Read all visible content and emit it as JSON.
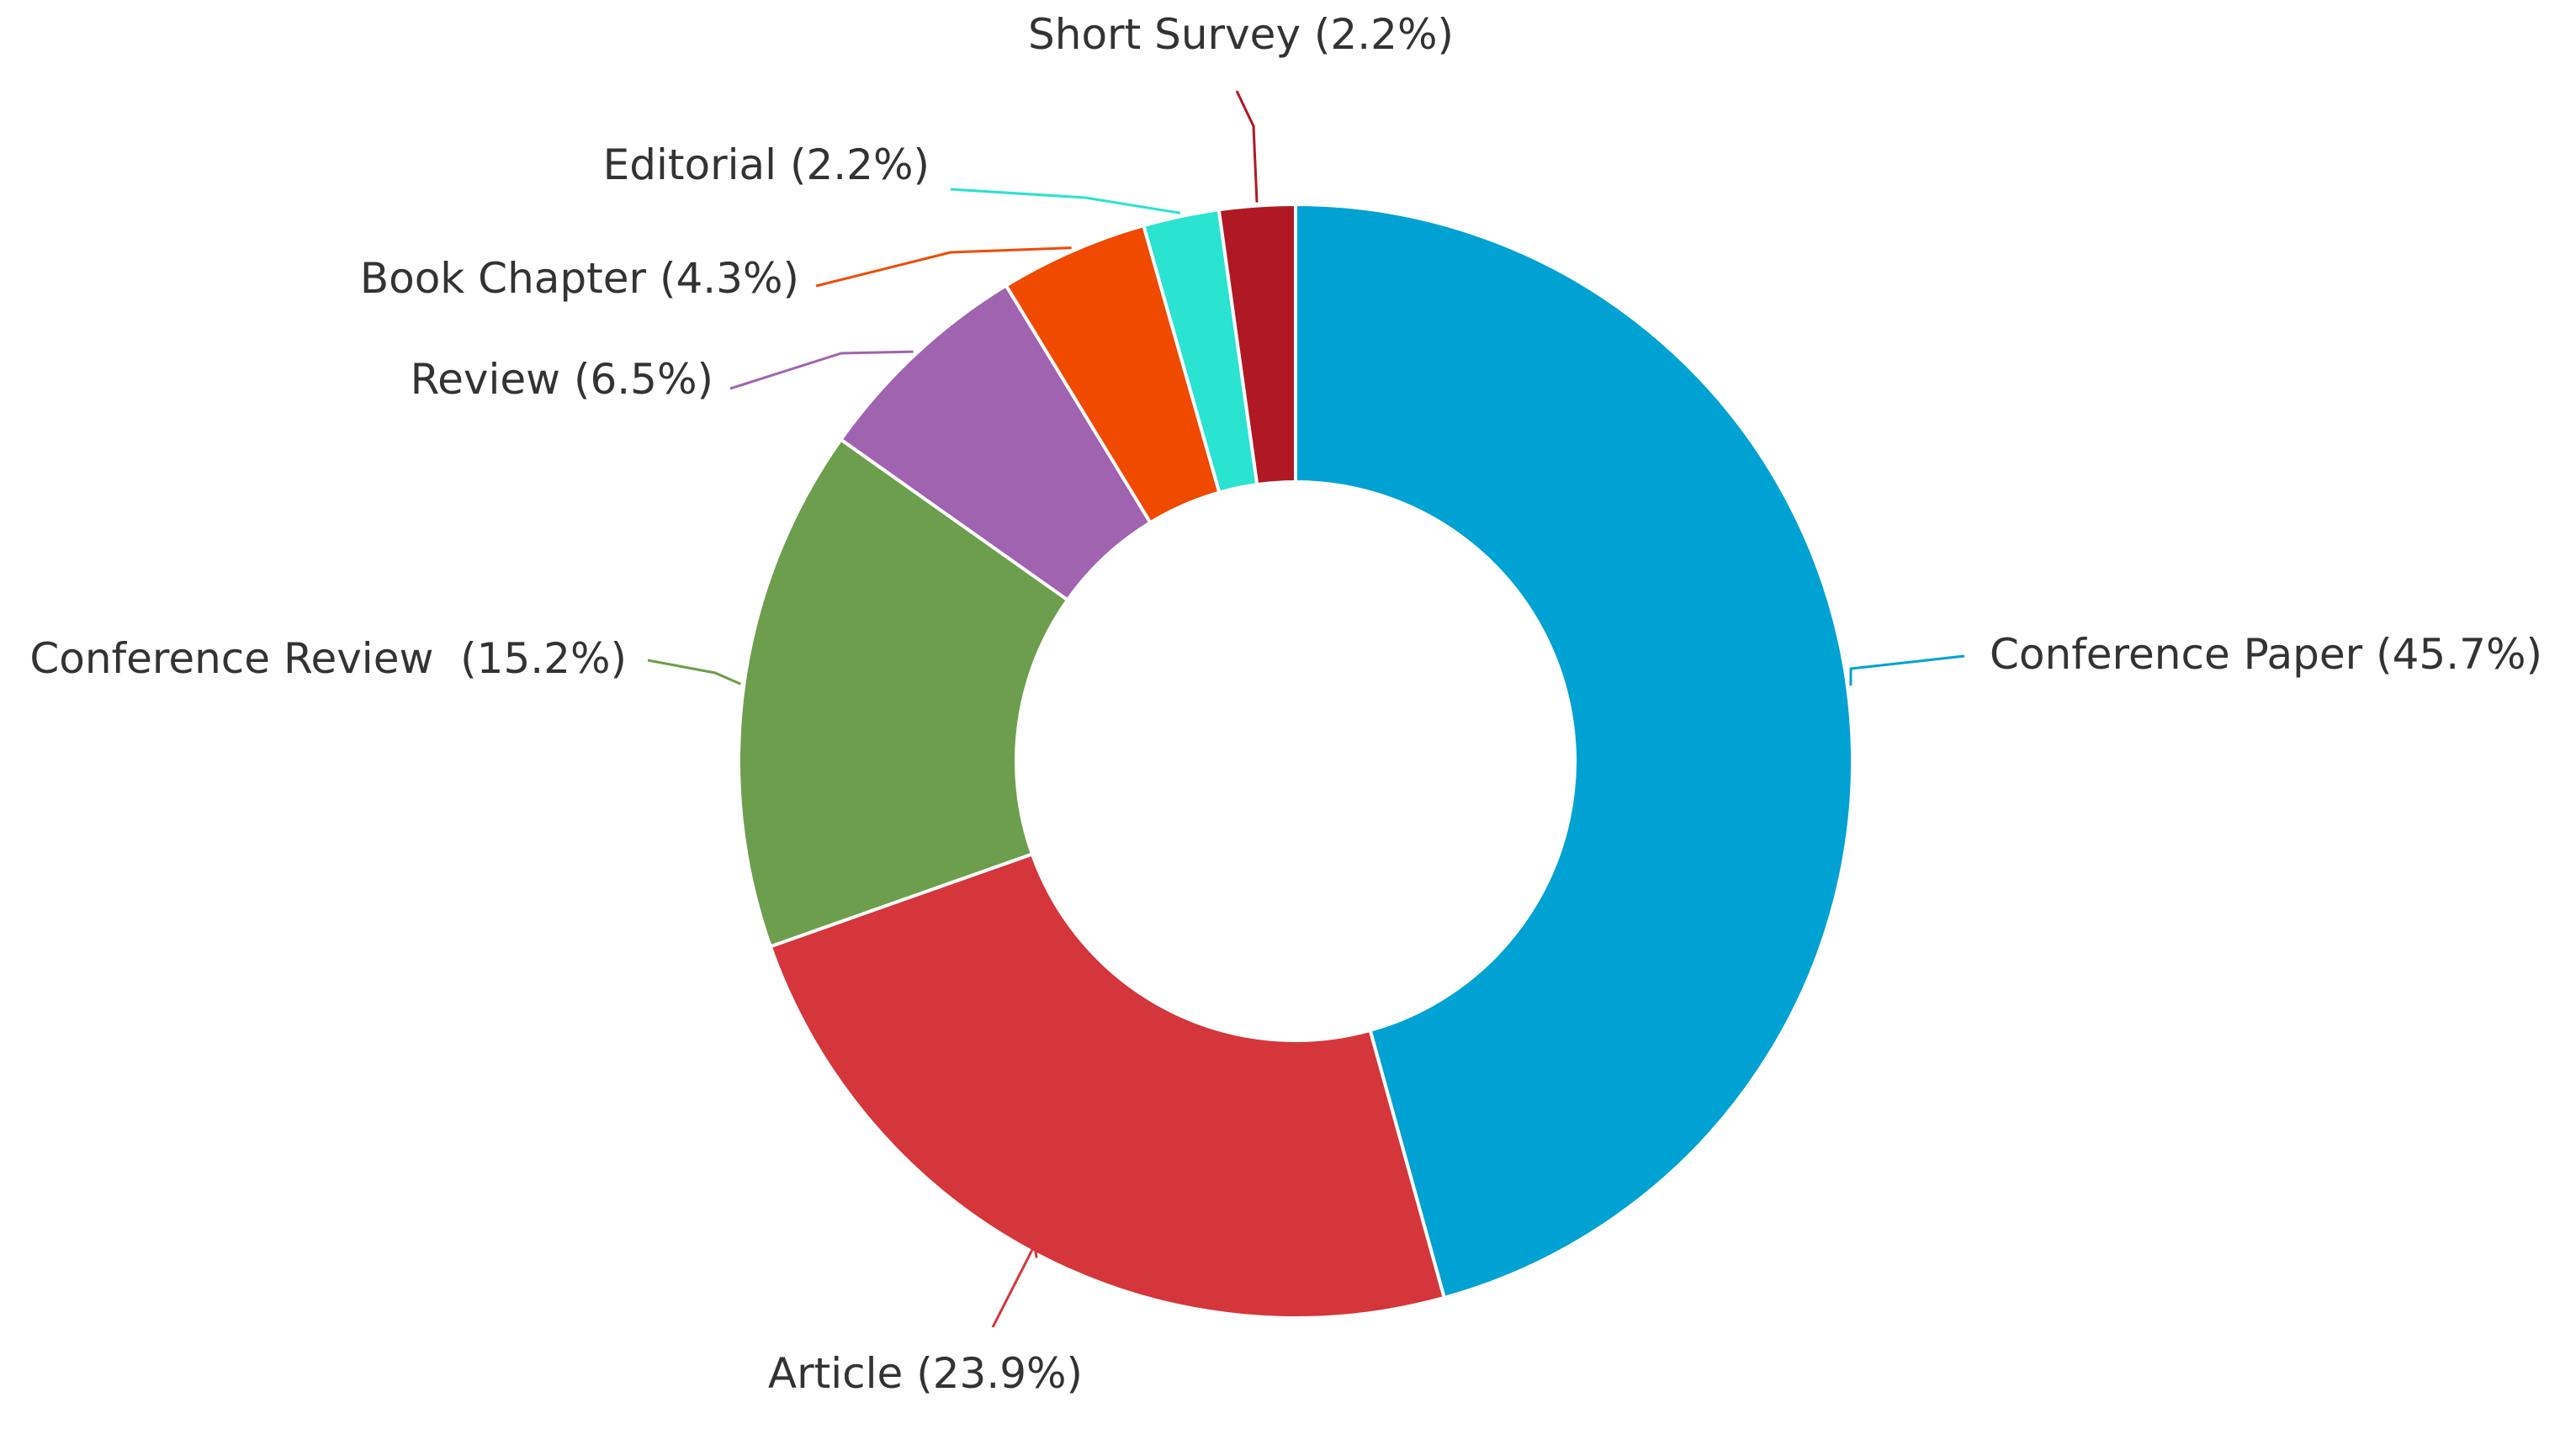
{
  "chart_data": {
    "type": "pie",
    "variant": "donut",
    "title": "",
    "slices": [
      {
        "label": "Conference Paper",
        "display": "Conference Paper (45.7%)",
        "value": 45.7,
        "color": "#00a2d3"
      },
      {
        "label": "Article",
        "display": "Article (23.9%)",
        "value": 23.9,
        "color": "#d5363b"
      },
      {
        "label": "Conference Review",
        "display": "Conference Review  (15.2%)",
        "value": 15.2,
        "color": "#6d9e4d"
      },
      {
        "label": "Review",
        "display": "Review (6.5%)",
        "value": 6.5,
        "color": "#a063b0"
      },
      {
        "label": "Book Chapter",
        "display": "Book Chapter (4.3%)",
        "value": 4.3,
        "color": "#f04a00"
      },
      {
        "label": "Editorial",
        "display": "Editorial (2.2%)",
        "value": 2.2,
        "color": "#2ae3d1"
      },
      {
        "label": "Short Survey",
        "display": "Short Survey (2.2%)",
        "value": 2.2,
        "color": "#b01924"
      }
    ]
  }
}
